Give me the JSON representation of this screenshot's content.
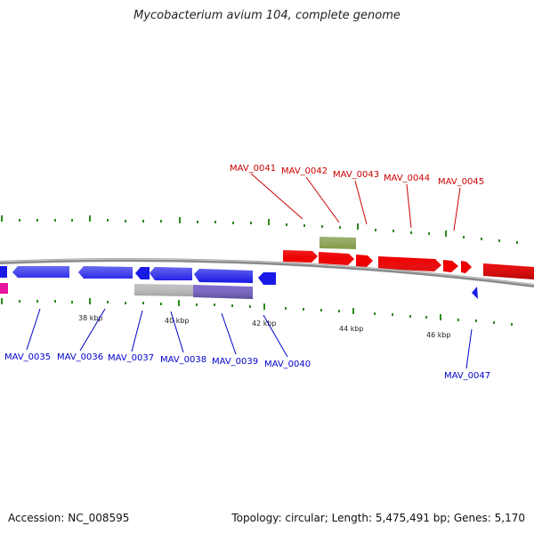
{
  "title": "Mycobacterium avium 104, complete genome",
  "footer": {
    "accession": "Accession: NC_008595",
    "summary": "Topology: circular; Length: 5,475,491 bp; Genes: 5,170"
  },
  "colors": {
    "forward_gene": "#ee0000",
    "reverse_gene": "#1a1ae6",
    "forward_label": "#cc0000",
    "reverse_label": "#0000cc",
    "tick": "#2d8a1e",
    "backbone": "#888888",
    "gray_feature": "#c0c0c0",
    "purple_feature": "#7a66cc",
    "pink_feature": "#e8139c",
    "olive_feature": "#6e8a2a"
  },
  "scale_labels": [
    "38 kbp",
    "40 kbp",
    "42 kbp",
    "44 kbp",
    "46 kbp"
  ],
  "forward_labels": [
    "MAV_0041",
    "MAV_0042",
    "MAV_0043",
    "MAV_0044",
    "MAV_0045"
  ],
  "reverse_labels": [
    "MAV_0035",
    "MAV_0036",
    "MAV_0037",
    "MAV_0038",
    "MAV_0039",
    "MAV_0040",
    "MAV_0047"
  ]
}
